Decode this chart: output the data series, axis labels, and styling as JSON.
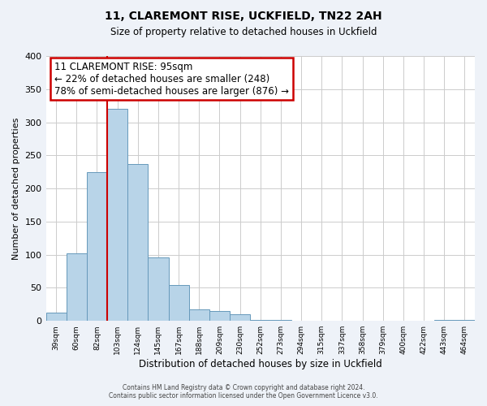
{
  "title1": "11, CLAREMONT RISE, UCKFIELD, TN22 2AH",
  "title2": "Size of property relative to detached houses in Uckfield",
  "xlabel": "Distribution of detached houses by size in Uckfield",
  "ylabel": "Number of detached properties",
  "tick_labels": [
    "39sqm",
    "60sqm",
    "82sqm",
    "103sqm",
    "124sqm",
    "145sqm",
    "167sqm",
    "188sqm",
    "209sqm",
    "230sqm",
    "252sqm",
    "273sqm",
    "294sqm",
    "315sqm",
    "337sqm",
    "358sqm",
    "379sqm",
    "400sqm",
    "422sqm",
    "443sqm",
    "464sqm"
  ],
  "bar_heights": [
    13,
    102,
    225,
    320,
    237,
    96,
    54,
    18,
    15,
    10,
    2,
    1,
    0,
    0,
    0,
    0,
    0,
    0,
    0,
    2,
    2
  ],
  "bar_color": "#b8d4e8",
  "bar_edge_color": "#6699bb",
  "vline_index": 3,
  "annotation_title": "11 CLAREMONT RISE: 95sqm",
  "annotation_line1": "← 22% of detached houses are smaller (248)",
  "annotation_line2": "78% of semi-detached houses are larger (876) →",
  "annotation_box_color": "#ffffff",
  "annotation_box_edge": "#cc0000",
  "vline_color": "#cc0000",
  "ylim": [
    0,
    400
  ],
  "yticks": [
    0,
    50,
    100,
    150,
    200,
    250,
    300,
    350,
    400
  ],
  "footer1": "Contains HM Land Registry data © Crown copyright and database right 2024.",
  "footer2": "Contains public sector information licensed under the Open Government Licence v3.0.",
  "bg_color": "#eef2f8",
  "plot_bg_color": "#ffffff",
  "grid_color": "#cccccc"
}
